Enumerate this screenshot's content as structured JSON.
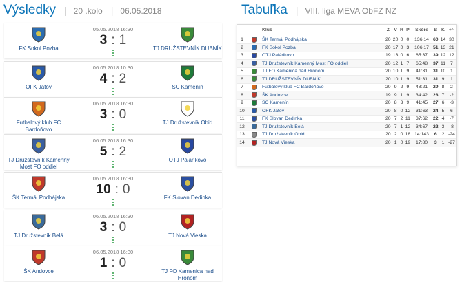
{
  "results": {
    "title": "Výsledky",
    "round": "20 .kolo",
    "date": "06.05.2018",
    "matches": [
      {
        "datetime": "05.05.2018 16:30",
        "home": "FK Sokol Pozba",
        "away": "TJ DRUŽSTEVNÍK DUBNÍK",
        "home_goals": "3",
        "away_goals": "1",
        "home_logo": "sokol-pozba-logo",
        "away_logo": "dubnik-logo",
        "home_color": "#2b6cb0",
        "away_color": "#3a8a3a"
      },
      {
        "datetime": "06.05.2018 10:30",
        "home": "OFK Jatov",
        "away": "SC Kamenín",
        "home_goals": "4",
        "away_goals": "2",
        "home_logo": "jatov-logo",
        "away_logo": "kamenin-logo",
        "home_color": "#2a5aa8",
        "away_color": "#1f7a3a"
      },
      {
        "datetime": "06.05.2018 16:30",
        "home": "Futbalový klub FC Bardoňovo",
        "away": "TJ Družstevník Obid",
        "home_goals": "3",
        "away_goals": "0",
        "home_logo": "bardonovo-logo",
        "away_logo": "obid-logo",
        "home_color": "#d2691e",
        "away_color": "#ffffff"
      },
      {
        "datetime": "06.05.2018 16:30",
        "home": "TJ Družstevník Kamenný Most FO oddiel",
        "away": "OTJ Palárikovo",
        "home_goals": "5",
        "away_goals": "2",
        "home_logo": "kamenny-most-logo",
        "away_logo": "palarikovo-logo",
        "home_color": "#3a5fa0",
        "away_color": "#2848a0"
      },
      {
        "datetime": "06.05.2018 16:30",
        "home": "ŠK Termál Podhájska",
        "away": "FK Slovan Dedinka",
        "home_goals": "10",
        "away_goals": "0",
        "home_logo": "podhajska-logo",
        "away_logo": "dedinka-logo",
        "home_color": "#c0392b",
        "away_color": "#2b4fa0"
      },
      {
        "datetime": "06.05.2018 16:30",
        "home": "TJ Družstevník Belá",
        "away": "TJ Nová Vieska",
        "home_goals": "3",
        "away_goals": "0",
        "home_logo": "bela-logo",
        "away_logo": "nova-vieska-logo",
        "home_color": "#3a6a9a",
        "away_color": "#b22222"
      },
      {
        "datetime": "06.05.2018 16:30",
        "home": "ŠK Andovce",
        "away": "TJ FO Kamenica nad Hronom",
        "home_goals": "1",
        "away_goals": "0",
        "home_logo": "andovce-logo",
        "away_logo": "kamenica-logo",
        "home_color": "#c0392b",
        "away_color": "#3a8a3a"
      }
    ]
  },
  "standings": {
    "title": "Tabuľka",
    "league": "VIII. liga MEVA ObFZ NZ",
    "headers": {
      "klub": "Klub",
      "z": "Z",
      "v": "V",
      "r": "R",
      "p": "P",
      "skore": "Skóre",
      "b": "B",
      "k": "K",
      "pm": "+/-"
    },
    "rows": [
      {
        "pos": "1",
        "team": "ŠK Termál Podhájska",
        "z": "20",
        "v": "20",
        "r": "0",
        "p": "0",
        "score": "136:14",
        "b": "60",
        "k": "14",
        "pm": "30",
        "color": "#c0392b"
      },
      {
        "pos": "2",
        "team": "FK Sokol Pozba",
        "z": "20",
        "v": "17",
        "r": "0",
        "p": "3",
        "score": "106:17",
        "b": "51",
        "k": "13",
        "pm": "21",
        "color": "#2b6cb0"
      },
      {
        "pos": "3",
        "team": "OTJ Palárikovo",
        "z": "19",
        "v": "13",
        "r": "0",
        "p": "6",
        "score": "65:37",
        "b": "39",
        "k": "12",
        "pm": "12",
        "color": "#2848a0"
      },
      {
        "pos": "4",
        "team": "TJ Družstevník Kamenný Most FO oddiel",
        "z": "20",
        "v": "12",
        "r": "1",
        "p": "7",
        "score": "65:48",
        "b": "37",
        "k": "11",
        "pm": "7",
        "color": "#3a5fa0"
      },
      {
        "pos": "5",
        "team": "TJ FO Kamenica nad Hronom",
        "z": "20",
        "v": "10",
        "r": "1",
        "p": "9",
        "score": "41:31",
        "b": "31",
        "k": "10",
        "pm": "1",
        "color": "#3a8a3a"
      },
      {
        "pos": "6",
        "team": "TJ DRUŽSTEVNÍK DUBNÍK",
        "z": "20",
        "v": "10",
        "r": "1",
        "p": "9",
        "score": "51:31",
        "b": "31",
        "k": "9",
        "pm": "1",
        "color": "#3a8a3a"
      },
      {
        "pos": "7",
        "team": "Futbalový klub FC Bardoňovo",
        "z": "20",
        "v": "9",
        "r": "2",
        "p": "9",
        "score": "48:21",
        "b": "29",
        "k": "8",
        "pm": "2",
        "color": "#d2691e"
      },
      {
        "pos": "8",
        "team": "ŠK Andovce",
        "z": "19",
        "v": "9",
        "r": "1",
        "p": "9",
        "score": "34:42",
        "b": "28",
        "k": "7",
        "pm": "-2",
        "color": "#c0392b"
      },
      {
        "pos": "9",
        "team": "SC Kamenín",
        "z": "20",
        "v": "8",
        "r": "3",
        "p": "9",
        "score": "41:45",
        "b": "27",
        "k": "6",
        "pm": "-3",
        "color": "#1f7a3a"
      },
      {
        "pos": "10",
        "team": "OFK Jatov",
        "z": "20",
        "v": "8",
        "r": "0",
        "p": "12",
        "score": "31:63",
        "b": "24",
        "k": "5",
        "pm": "6",
        "color": "#2a5aa8"
      },
      {
        "pos": "11",
        "team": "FK Slovan Dedinka",
        "z": "20",
        "v": "7",
        "r": "2",
        "p": "11",
        "score": "37:62",
        "b": "22",
        "k": "4",
        "pm": "-7",
        "color": "#2b4fa0"
      },
      {
        "pos": "12",
        "team": "TJ Družstevník Belá",
        "z": "20",
        "v": "7",
        "r": "1",
        "p": "12",
        "score": "34:67",
        "b": "22",
        "k": "3",
        "pm": "-8",
        "color": "#3a6a9a"
      },
      {
        "pos": "13",
        "team": "TJ Družstevník Obid",
        "z": "20",
        "v": "2",
        "r": "0",
        "p": "18",
        "score": "14:143",
        "b": "6",
        "k": "2",
        "pm": "-24",
        "color": "#888888"
      },
      {
        "pos": "14",
        "team": "TJ Nová Vieska",
        "z": "20",
        "v": "1",
        "r": "0",
        "p": "19",
        "score": "17:80",
        "b": "3",
        "k": "1",
        "pm": "-27",
        "color": "#b22222"
      }
    ]
  }
}
